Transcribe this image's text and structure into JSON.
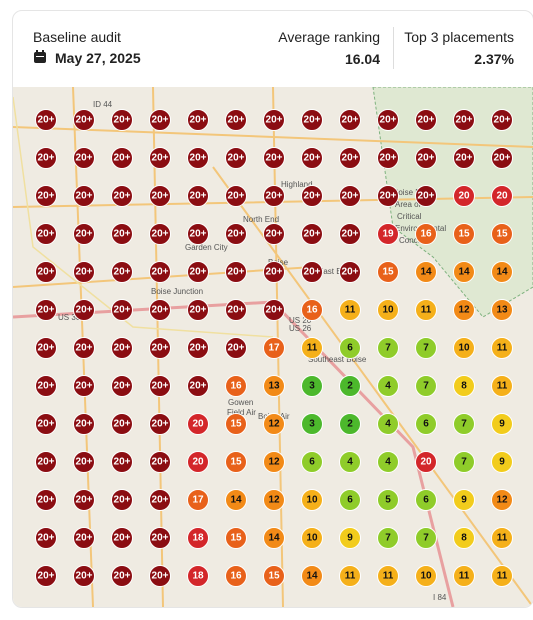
{
  "header": {
    "title": "Baseline audit",
    "date": "May 27, 2025",
    "average_ranking": {
      "label": "Average ranking",
      "value": "16.04"
    },
    "top3": {
      "label": "Top 3 placements",
      "value": "2.37%"
    }
  },
  "map": {
    "labels": [
      "ID 44",
      "Highland",
      "North End",
      "Garden City",
      "Boise",
      "Boise Junction",
      "East End",
      "Southeast Boise",
      "Boise Front",
      "Area of",
      "Critical",
      "Environmental",
      "Concern",
      "Gowen",
      "Field Air",
      "Boise Air",
      "US 20",
      "US 26",
      "I 84",
      "US 30"
    ]
  },
  "grid": {
    "rows": [
      [
        "20+",
        "20+",
        "20+",
        "20+",
        "20+",
        "20+",
        "20+",
        "20+",
        "20+",
        "20+",
        "20+",
        "20+",
        "20+"
      ],
      [
        "20+",
        "20+",
        "20+",
        "20+",
        "20+",
        "20+",
        "20+",
        "20+",
        "20+",
        "20+",
        "20+",
        "20+",
        "20+"
      ],
      [
        "20+",
        "20+",
        "20+",
        "20+",
        "20+",
        "20+",
        "20+",
        "20+",
        "20+",
        "20+",
        "20+",
        "20",
        "20"
      ],
      [
        "20+",
        "20+",
        "20+",
        "20+",
        "20+",
        "20+",
        "20+",
        "20+",
        "20+",
        "19",
        "16",
        "15",
        "15"
      ],
      [
        "20+",
        "20+",
        "20+",
        "20+",
        "20+",
        "20+",
        "20+",
        "20+",
        "20+",
        "15",
        "14",
        "14",
        "14"
      ],
      [
        "20+",
        "20+",
        "20+",
        "20+",
        "20+",
        "20+",
        "20+",
        "16",
        "11",
        "10",
        "11",
        "12",
        "13"
      ],
      [
        "20+",
        "20+",
        "20+",
        "20+",
        "20+",
        "20+",
        "17",
        "11",
        "6",
        "7",
        "7",
        "10",
        "11"
      ],
      [
        "20+",
        "20+",
        "20+",
        "20+",
        "20+",
        "16",
        "13",
        "3",
        "2",
        "4",
        "7",
        "8",
        "11"
      ],
      [
        "20+",
        "20+",
        "20+",
        "20+",
        "20",
        "15",
        "12",
        "3",
        "2",
        "4",
        "6",
        "7",
        "9"
      ],
      [
        "20+",
        "20+",
        "20+",
        "20+",
        "20",
        "15",
        "12",
        "6",
        "4",
        "4",
        "20",
        "7",
        "9"
      ],
      [
        "20+",
        "20+",
        "20+",
        "20+",
        "17",
        "14",
        "12",
        "10",
        "6",
        "5",
        "6",
        "9",
        "12"
      ],
      [
        "20+",
        "20+",
        "20+",
        "20+",
        "18",
        "15",
        "14",
        "10",
        "9",
        "7",
        "7",
        "8",
        "11"
      ],
      [
        "20+",
        "20+",
        "20+",
        "20+",
        "18",
        "16",
        "15",
        "14",
        "11",
        "11",
        "10",
        "11",
        "11"
      ]
    ]
  }
}
